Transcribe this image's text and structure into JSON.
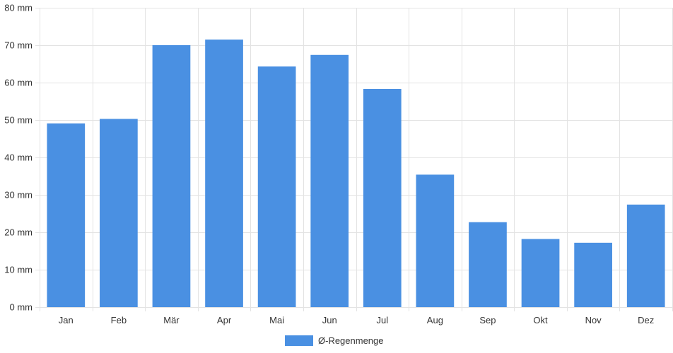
{
  "chart_data": {
    "type": "bar",
    "categories": [
      "Jan",
      "Feb",
      "Mär",
      "Apr",
      "Mai",
      "Jun",
      "Jul",
      "Aug",
      "Sep",
      "Okt",
      "Nov",
      "Dez"
    ],
    "series": [
      {
        "name": "Ø-Regenmenge",
        "color": "#4a90e2",
        "values": [
          49.1,
          50.3,
          70.0,
          71.5,
          64.3,
          67.4,
          58.3,
          35.4,
          22.7,
          18.2,
          17.2,
          27.4
        ]
      }
    ],
    "ylim": [
      0,
      80
    ],
    "yticks": [
      0,
      10,
      20,
      30,
      40,
      50,
      60,
      70,
      80
    ],
    "y_unit": "mm",
    "grid": true,
    "legend_position": "bottom-center",
    "title": "",
    "xlabel": "",
    "ylabel": ""
  }
}
